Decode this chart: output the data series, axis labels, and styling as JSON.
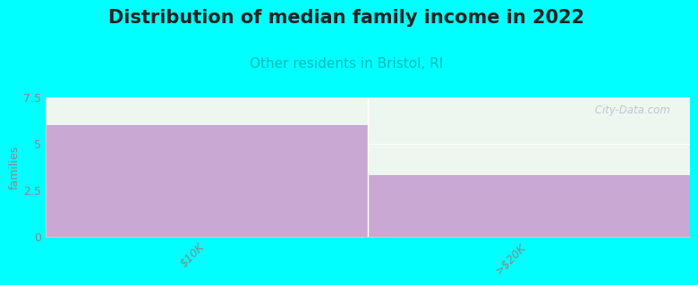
{
  "title": "Distribution of median family income in 2022",
  "subtitle": "Other residents in Bristol, RI",
  "categories": [
    "$10K",
    ">$20K"
  ],
  "values": [
    6.0,
    3.3
  ],
  "bar_color": "#c9a8d4",
  "background_color": "#00ffff",
  "plot_bg_color": "#edf7ef",
  "ylabel": "families",
  "ylim": [
    0,
    7.5
  ],
  "yticks": [
    0,
    2.5,
    5,
    7.5
  ],
  "title_fontsize": 15,
  "subtitle_fontsize": 11,
  "subtitle_color": "#00bbbb",
  "title_color": "#222222",
  "tick_color": "#888888",
  "watermark": " City-Data.com",
  "watermark_color": "#bbbbcc"
}
